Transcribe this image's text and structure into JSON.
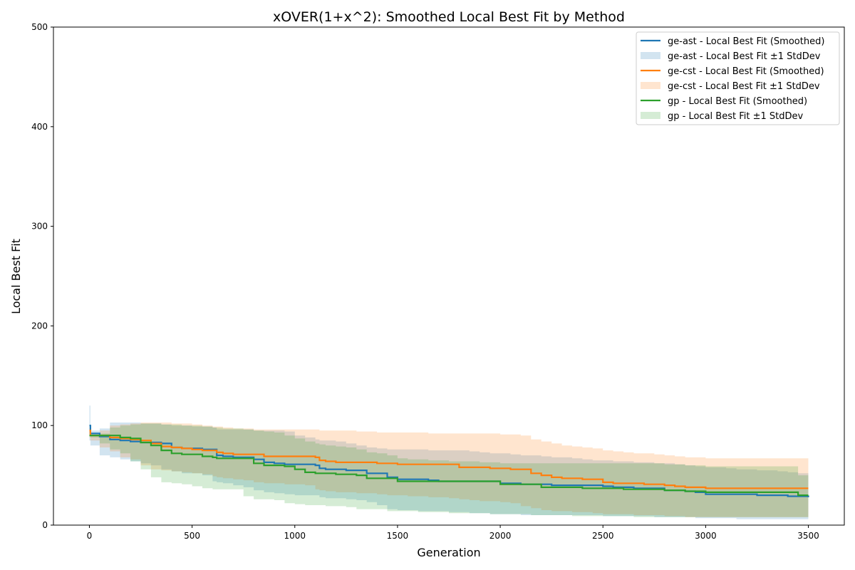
{
  "chart_data": {
    "type": "line",
    "title": "xOVER(1+x^2): Smoothed Local Best Fit by Method",
    "xlabel": "Generation",
    "ylabel": "Local Best Fit",
    "xlim": [
      -175,
      3675
    ],
    "ylim": [
      0,
      500
    ],
    "xticks": [
      0,
      500,
      1000,
      1500,
      2000,
      2500,
      3000,
      3500
    ],
    "yticks": [
      0,
      100,
      200,
      300,
      400,
      500
    ],
    "grid": false,
    "legend_position": "top-right",
    "series": [
      {
        "name": "ge-ast",
        "line_label": "ge-ast - Local Best Fit (Smoothed)",
        "band_label": "ge-ast - Local Best Fit ±1 StdDev",
        "color": "#1f77b4",
        "x": [
          0,
          5,
          50,
          100,
          150,
          200,
          250,
          300,
          350,
          400,
          450,
          500,
          550,
          600,
          620,
          650,
          700,
          750,
          800,
          850,
          900,
          950,
          1000,
          1050,
          1100,
          1120,
          1150,
          1200,
          1250,
          1300,
          1350,
          1400,
          1450,
          1500,
          1550,
          1600,
          1650,
          1700,
          1750,
          1800,
          1850,
          1900,
          1950,
          2000,
          2050,
          2100,
          2150,
          2200,
          2250,
          2300,
          2350,
          2400,
          2450,
          2500,
          2550,
          2600,
          2650,
          2700,
          2750,
          2800,
          2850,
          2900,
          2950,
          3000,
          3050,
          3100,
          3150,
          3200,
          3250,
          3300,
          3350,
          3400,
          3450,
          3500
        ],
        "y": [
          100,
          92,
          89,
          86,
          85,
          84,
          83,
          83,
          82,
          78,
          77,
          77,
          76,
          76,
          70,
          69,
          68,
          68,
          66,
          63,
          62,
          61,
          61,
          61,
          60,
          57,
          56,
          56,
          55,
          55,
          52,
          52,
          48,
          46,
          46,
          46,
          45,
          44,
          44,
          44,
          44,
          44,
          44,
          42,
          42,
          41,
          41,
          41,
          40,
          40,
          40,
          40,
          40,
          39,
          38,
          38,
          37,
          37,
          37,
          35,
          35,
          34,
          33,
          31,
          31,
          31,
          31,
          31,
          30,
          30,
          30,
          29,
          29,
          28
        ],
        "upper": [
          120,
          95,
          97,
          103,
          103,
          103,
          102,
          102,
          101,
          100,
          100,
          99,
          99,
          98,
          96,
          96,
          96,
          96,
          95,
          95,
          95,
          94,
          90,
          88,
          86,
          85,
          85,
          84,
          82,
          80,
          78,
          77,
          76,
          76,
          76,
          76,
          75,
          75,
          75,
          75,
          74,
          73,
          72,
          72,
          71,
          70,
          70,
          69,
          68,
          68,
          67,
          66,
          65,
          65,
          64,
          64,
          63,
          63,
          62,
          62,
          61,
          60,
          59,
          58,
          58,
          57,
          56,
          56,
          55,
          55,
          54,
          53,
          52,
          51
        ],
        "lower": [
          80,
          85,
          80,
          70,
          68,
          66,
          64,
          62,
          60,
          56,
          54,
          52,
          52,
          50,
          44,
          43,
          42,
          40,
          38,
          35,
          33,
          32,
          31,
          30,
          30,
          30,
          28,
          27,
          27,
          26,
          25,
          23,
          20,
          16,
          15,
          15,
          14,
          14,
          14,
          13,
          13,
          12,
          12,
          11,
          11,
          11,
          10,
          10,
          10,
          10,
          10,
          10,
          10,
          10,
          9,
          9,
          9,
          9,
          9,
          8,
          8,
          8,
          8,
          7,
          7,
          7,
          7,
          6,
          6,
          6,
          6,
          6,
          6,
          6
        ]
      },
      {
        "name": "ge-cst",
        "line_label": "ge-cst - Local Best Fit (Smoothed)",
        "band_label": "ge-cst - Local Best Fit ±1 StdDev",
        "color": "#ff7f0e",
        "x": [
          0,
          5,
          50,
          100,
          150,
          200,
          250,
          300,
          350,
          400,
          450,
          500,
          550,
          600,
          620,
          650,
          700,
          750,
          800,
          850,
          900,
          950,
          1000,
          1050,
          1100,
          1120,
          1150,
          1200,
          1250,
          1300,
          1350,
          1400,
          1450,
          1500,
          1550,
          1600,
          1650,
          1700,
          1750,
          1800,
          1850,
          1900,
          1950,
          2000,
          2050,
          2100,
          2150,
          2200,
          2250,
          2300,
          2350,
          2400,
          2450,
          2500,
          2550,
          2600,
          2650,
          2700,
          2750,
          2800,
          2850,
          2900,
          2950,
          3000,
          3050,
          3100,
          3150,
          3200,
          3250,
          3300,
          3350,
          3400,
          3450,
          3500
        ],
        "y": [
          95,
          90,
          90,
          88,
          87,
          86,
          85,
          82,
          79,
          78,
          77,
          76,
          75,
          75,
          73,
          72,
          71,
          71,
          71,
          69,
          69,
          69,
          69,
          69,
          68,
          65,
          64,
          63,
          63,
          63,
          63,
          62,
          62,
          61,
          61,
          61,
          61,
          61,
          61,
          58,
          58,
          58,
          57,
          57,
          56,
          56,
          52,
          50,
          48,
          47,
          47,
          46,
          46,
          43,
          42,
          42,
          42,
          41,
          41,
          40,
          39,
          38,
          38,
          37,
          37,
          37,
          37,
          37,
          37,
          37,
          37,
          37,
          37,
          37
        ],
        "upper": [
          98,
          92,
          95,
          100,
          101,
          102,
          103,
          103,
          103,
          102,
          102,
          101,
          100,
          99,
          99,
          98,
          97,
          97,
          96,
          96,
          96,
          96,
          96,
          96,
          96,
          95,
          95,
          95,
          95,
          94,
          94,
          93,
          93,
          93,
          93,
          93,
          92,
          92,
          92,
          92,
          92,
          92,
          92,
          91,
          91,
          90,
          86,
          84,
          82,
          80,
          79,
          78,
          77,
          75,
          74,
          73,
          72,
          72,
          71,
          70,
          69,
          68,
          68,
          67,
          67,
          67,
          67,
          67,
          67,
          67,
          67,
          67,
          67,
          67
        ],
        "lower": [
          92,
          88,
          85,
          78,
          74,
          68,
          66,
          60,
          56,
          55,
          54,
          53,
          52,
          51,
          49,
          48,
          47,
          46,
          45,
          43,
          42,
          42,
          41,
          41,
          40,
          36,
          35,
          34,
          33,
          33,
          32,
          32,
          31,
          30,
          30,
          29,
          29,
          28,
          28,
          27,
          26,
          25,
          24,
          24,
          23,
          22,
          19,
          17,
          15,
          14,
          14,
          13,
          13,
          12,
          11,
          11,
          11,
          10,
          10,
          10,
          9,
          9,
          8,
          8,
          8,
          8,
          8,
          8,
          8,
          8,
          8,
          8,
          8,
          8
        ]
      },
      {
        "name": "gp",
        "line_label": "gp - Local Best Fit (Smoothed)",
        "band_label": "gp - Local Best Fit ±1 StdDev",
        "color": "#2ca02c",
        "x": [
          0,
          5,
          50,
          100,
          150,
          200,
          250,
          300,
          350,
          400,
          450,
          500,
          550,
          600,
          620,
          650,
          700,
          750,
          800,
          850,
          900,
          950,
          1000,
          1050,
          1100,
          1120,
          1150,
          1200,
          1250,
          1300,
          1350,
          1400,
          1450,
          1500,
          1550,
          1600,
          1650,
          1700,
          1750,
          1800,
          1850,
          1900,
          1950,
          2000,
          2050,
          2100,
          2150,
          2200,
          2250,
          2300,
          2350,
          2400,
          2450,
          2500,
          2550,
          2600,
          2650,
          2700,
          2750,
          2800,
          2850,
          2900,
          2950,
          3000,
          3050,
          3100,
          3150,
          3200,
          3250,
          3300,
          3350,
          3400,
          3450,
          3500
        ],
        "y": [
          90,
          90,
          90,
          90,
          88,
          87,
          83,
          80,
          75,
          72,
          71,
          71,
          69,
          68,
          67,
          67,
          67,
          67,
          62,
          60,
          60,
          59,
          56,
          53,
          52,
          52,
          52,
          51,
          51,
          50,
          47,
          47,
          47,
          44,
          44,
          44,
          44,
          44,
          44,
          44,
          44,
          44,
          44,
          41,
          41,
          41,
          41,
          38,
          38,
          38,
          38,
          37,
          37,
          37,
          37,
          36,
          36,
          36,
          36,
          35,
          35,
          34,
          34,
          33,
          33,
          33,
          33,
          33,
          33,
          33,
          33,
          33,
          30,
          30
        ],
        "upper": [
          90,
          90,
          92,
          98,
          100,
          101,
          102,
          102,
          101,
          101,
          100,
          100,
          99,
          98,
          98,
          97,
          97,
          96,
          95,
          94,
          93,
          90,
          87,
          84,
          82,
          81,
          80,
          79,
          78,
          76,
          73,
          72,
          70,
          67,
          66,
          66,
          65,
          65,
          64,
          64,
          64,
          63,
          63,
          62,
          62,
          62,
          62,
          62,
          62,
          62,
          62,
          62,
          62,
          62,
          62,
          62,
          62,
          62,
          62,
          61,
          61,
          60,
          60,
          59,
          59,
          59,
          59,
          59,
          59,
          59,
          59,
          59,
          50,
          50
        ],
        "lower": [
          90,
          90,
          88,
          82,
          76,
          72,
          64,
          56,
          48,
          43,
          42,
          41,
          39,
          37,
          36,
          36,
          36,
          36,
          29,
          26,
          26,
          25,
          22,
          21,
          20,
          20,
          20,
          19,
          19,
          18,
          16,
          16,
          16,
          14,
          14,
          14,
          13,
          13,
          13,
          12,
          12,
          12,
          12,
          11,
          11,
          11,
          11,
          10,
          10,
          10,
          10,
          9,
          9,
          9,
          9,
          9,
          9,
          8,
          8,
          8,
          8,
          8,
          8,
          8,
          8,
          8,
          8,
          8,
          8,
          8,
          8,
          8,
          8,
          8
        ]
      }
    ]
  }
}
